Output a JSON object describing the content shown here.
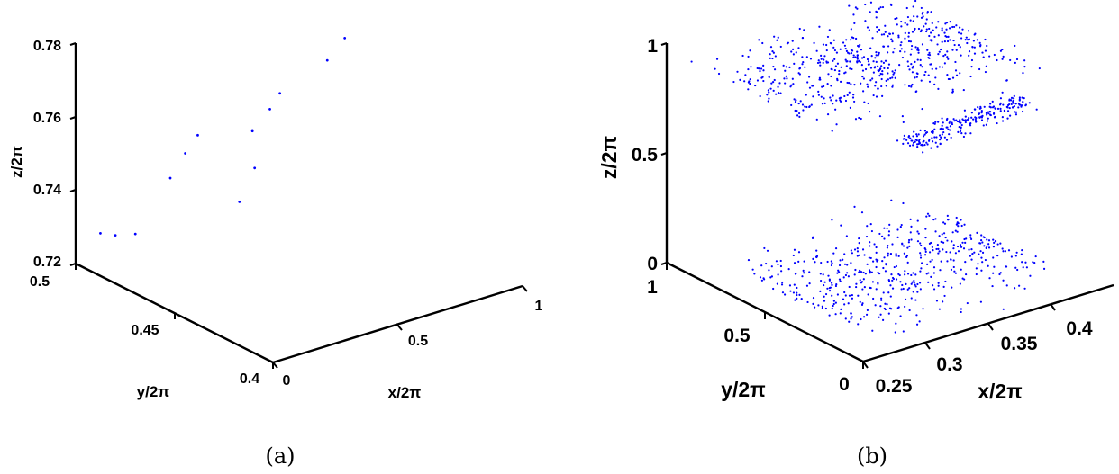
{
  "chart_data": [
    {
      "type": "scatter",
      "caption": "(a)",
      "xlabel": "x/2π",
      "ylabel": "y/2π",
      "zlabel": "z/2π",
      "xlim": [
        0,
        1
      ],
      "ylim": [
        0.4,
        0.5
      ],
      "zlim": [
        0.72,
        0.78
      ],
      "x_ticks": [
        "0",
        "0.5",
        "1"
      ],
      "y_ticks": [
        "0.4",
        "0.45",
        "0.5"
      ],
      "z_ticks": [
        "0.72",
        "0.74",
        "0.76",
        "0.78"
      ],
      "marker_color": "#0000ff",
      "grid": false,
      "note_points": "points listed as [x/2π, y/2π, z/2π], estimated",
      "points": [
        [
          0.02,
          0.49,
          0.7305
        ],
        [
          0.08,
          0.49,
          0.7287
        ],
        [
          0.16,
          0.49,
          0.7274
        ],
        [
          0.3,
          0.49,
          0.7397
        ],
        [
          0.36,
          0.49,
          0.7452
        ],
        [
          0.41,
          0.49,
          0.7491
        ],
        [
          0.34,
          0.46,
          0.7405
        ],
        [
          0.48,
          0.47,
          0.7441
        ],
        [
          0.55,
          0.48,
          0.75
        ],
        [
          0.55,
          0.48,
          0.7502
        ],
        [
          0.62,
          0.48,
          0.7545
        ],
        [
          0.66,
          0.48,
          0.758
        ],
        [
          0.85,
          0.48,
          0.763
        ],
        [
          0.92,
          0.48,
          0.7676
        ]
      ]
    },
    {
      "type": "scatter",
      "caption": "(b)",
      "xlabel": "x/2π",
      "ylabel": "y/2π",
      "zlabel": "z/2π",
      "xlim": [
        0.25,
        0.45
      ],
      "ylim": [
        0,
        1
      ],
      "zlim": [
        0,
        1
      ],
      "x_ticks": [
        "0.25",
        "0.3",
        "0.35",
        "0.4"
      ],
      "y_ticks": [
        "0",
        "0.5",
        "1"
      ],
      "z_ticks": [
        "0",
        "0.5",
        "1"
      ],
      "marker_color": "#0000ff",
      "grid": false,
      "clusters": [
        {
          "x_range": [
            0.25,
            0.33
          ],
          "y_range": [
            0.0,
            1.0
          ],
          "z_range": [
            0.97,
            1.03
          ],
          "count": 260
        },
        {
          "x_range": [
            0.33,
            0.41
          ],
          "y_range": [
            0.0,
            1.0
          ],
          "z_range": [
            0.95,
            1.03
          ],
          "count": 320
        },
        {
          "x_range": [
            0.35,
            0.44
          ],
          "y_range": [
            0.3,
            0.5
          ],
          "z_range": [
            0.62,
            0.7
          ],
          "count": 230
        },
        {
          "x_range": [
            0.28,
            0.43
          ],
          "y_range": [
            0.0,
            1.0
          ],
          "z_range": [
            -0.02,
            0.05
          ],
          "count": 520
        }
      ]
    }
  ]
}
